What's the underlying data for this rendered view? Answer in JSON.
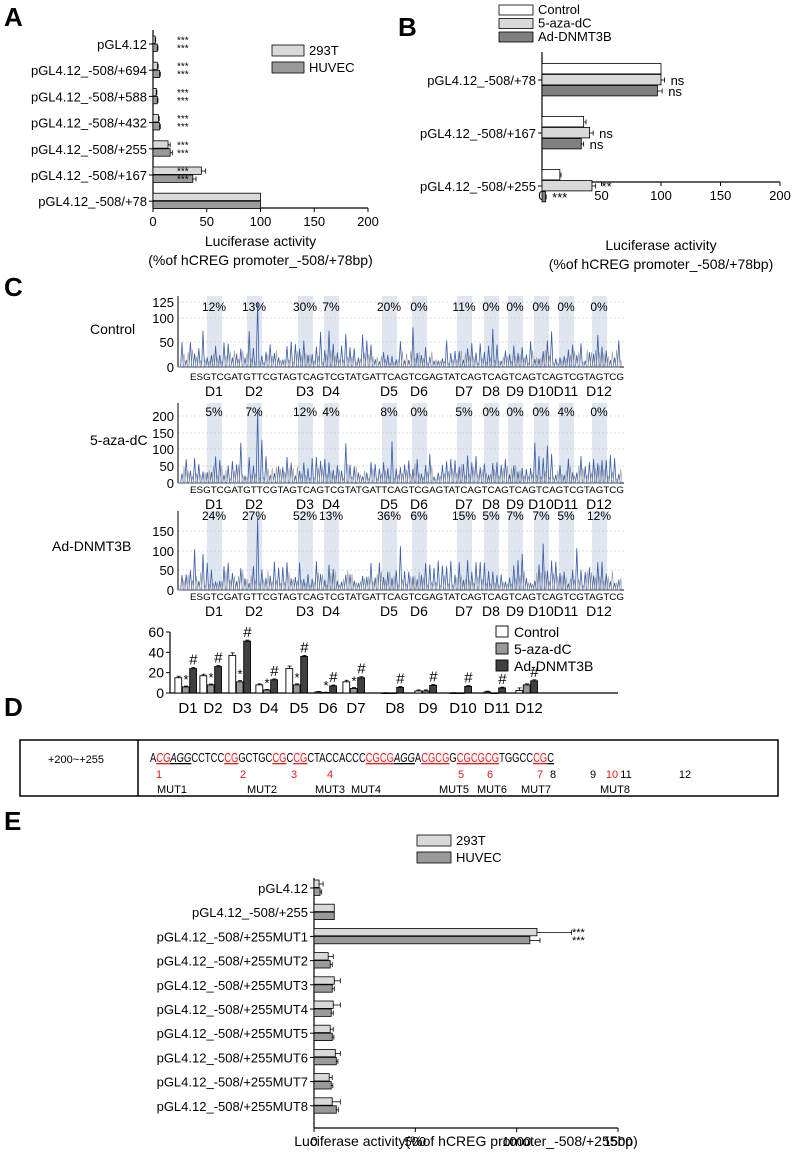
{
  "chart_data": [
    {
      "panel": "A",
      "type": "bar",
      "orientation": "horizontal",
      "categories": [
        "pGL4.12",
        "pGL4.12_-508/+694",
        "pGL4.12_-508/+588",
        "pGL4.12_-508/+432",
        "pGL4.12_-508/+255",
        "pGL4.12_-508/+167",
        "pGL4.12_-508/+78"
      ],
      "series": [
        {
          "name": "293T",
          "values": [
            2,
            4,
            3,
            5,
            14,
            45,
            100
          ],
          "errors": [
            0.5,
            0.8,
            0.6,
            0.8,
            2,
            4,
            0
          ],
          "color": "#d9d9d9"
        },
        {
          "name": "HUVEC",
          "values": [
            4,
            6,
            4,
            6,
            16,
            37,
            100
          ],
          "errors": [
            0.6,
            0.8,
            0.6,
            0.8,
            2,
            3,
            0
          ],
          "color": "#9a9a9a"
        }
      ],
      "significance": [
        [
          "***",
          "***"
        ],
        [
          "***",
          "***"
        ],
        [
          "***",
          "***"
        ],
        [
          "***",
          "***"
        ],
        [
          "***",
          "***"
        ],
        [
          "***",
          "***"
        ],
        [
          "",
          ""
        ]
      ],
      "xlabel": "Luciferase activity",
      "xlabel2": "(%of hCREG promoter_-508/+78bp)",
      "xlim": [
        0,
        200
      ],
      "xticks": [
        "0",
        "50",
        "100",
        "150",
        "200"
      ],
      "legend_placement": "top-right"
    },
    {
      "panel": "B",
      "type": "bar",
      "orientation": "horizontal",
      "categories": [
        "pGL4.12_-508/+78",
        "pGL4.12_-508/+167",
        "pGL4.12_-508/+255"
      ],
      "series": [
        {
          "name": "Control",
          "values": [
            100,
            35,
            15
          ],
          "errors": [
            0,
            2,
            1
          ],
          "color": "#ffffff"
        },
        {
          "name": "5-aza-dC",
          "values": [
            100,
            40,
            42
          ],
          "errors": [
            3,
            3,
            3
          ],
          "color": "#d9d9d9"
        },
        {
          "name": "Ad-DNMT3B",
          "values": [
            97,
            33,
            3
          ],
          "errors": [
            4,
            2,
            0.5
          ],
          "color": "#808080"
        }
      ],
      "significance": [
        [
          "",
          "ns",
          "ns"
        ],
        [
          "",
          "ns",
          "ns"
        ],
        [
          "",
          "**",
          "***"
        ]
      ],
      "xlabel": "Luciferase activity",
      "xlabel2": "(%of hCREG promoter_-508/+78bp)",
      "xlim": [
        0,
        200
      ],
      "xticks": [
        "0",
        "50",
        "100",
        "150",
        "200"
      ],
      "legend_placement": "top"
    },
    {
      "panel": "C-top",
      "type": "line",
      "sequence": "ESGTCGATGTTCGTAGTCAGTCGTATGATTCAGTCGAGTATCAGTCAGTCAGTCAGTCGTAGTCG",
      "sites": [
        "D1",
        "D2",
        "D3",
        "D4",
        "D5",
        "D6",
        "D7",
        "D8",
        "D9",
        "D10",
        "D11",
        "D12"
      ],
      "traces": [
        {
          "name": "Control",
          "yticks": [
            "0",
            "50",
            "100",
            "125"
          ],
          "ymax": 130,
          "percentages": [
            "12%",
            "13%",
            "30%",
            "7%",
            "20%",
            "0%",
            "11%",
            "0%",
            "0%",
            "0%",
            "0%",
            "0%"
          ]
        },
        {
          "name": "5-aza-dC",
          "yticks": [
            "0",
            "50",
            "100",
            "150",
            "200"
          ],
          "ymax": 220,
          "percentages": [
            "5%",
            "7%",
            "12%",
            "4%",
            "8%",
            "0%",
            "5%",
            "0%",
            "0%",
            "0%",
            "4%",
            "0%"
          ]
        },
        {
          "name": "Ad-DNMT3B",
          "yticks": [
            "0",
            "50",
            "100",
            "150"
          ],
          "ymax": 165,
          "percentages": [
            "24%",
            "27%",
            "52%",
            "13%",
            "36%",
            "6%",
            "15%",
            "5%",
            "7%",
            "7%",
            "5%",
            "12%"
          ]
        }
      ]
    },
    {
      "panel": "C-bottom",
      "type": "bar",
      "categories": [
        "D1",
        "D2",
        "D3",
        "D4",
        "D5",
        "D6",
        "D7",
        "D8",
        "D9",
        "D10",
        "D11",
        "D12"
      ],
      "series": [
        {
          "name": "Control",
          "values": [
            15,
            17,
            37,
            8,
            24,
            1,
            11,
            0,
            2,
            0,
            1,
            2.5
          ],
          "errors": [
            1.5,
            1.5,
            2.5,
            1,
            2.5,
            0.5,
            1.5,
            0.3,
            1,
            0.3,
            0.8,
            2.5
          ],
          "color": "#ffffff"
        },
        {
          "name": "5-aza-dC",
          "values": [
            6,
            8,
            11,
            3,
            8,
            0.5,
            4.5,
            0,
            2,
            0,
            0,
            8
          ],
          "errors": [
            0.8,
            0.8,
            1.2,
            0.5,
            1,
            0.3,
            0.8,
            0,
            1,
            0,
            0,
            1
          ],
          "color": "#999999"
        },
        {
          "name": "Ad-DNMT3B",
          "values": [
            24,
            26,
            51,
            13,
            36,
            7,
            15,
            5.5,
            7.5,
            6.5,
            5,
            12
          ],
          "errors": [
            1,
            1,
            1,
            0.8,
            1,
            0.8,
            1,
            0.8,
            0.8,
            0.8,
            0.8,
            1
          ],
          "color": "#404040"
        }
      ],
      "marks_star": [
        true,
        true,
        true,
        true,
        true,
        true,
        true,
        false,
        false,
        false,
        false,
        false
      ],
      "marks_hash": [
        true,
        true,
        true,
        true,
        true,
        true,
        true,
        true,
        true,
        true,
        true,
        true
      ],
      "star_label": "*",
      "hash_label": "#",
      "ylim": [
        0,
        60
      ],
      "yticks": [
        "0",
        "20",
        "40",
        "60"
      ],
      "legend_placement": "top-right"
    },
    {
      "panel": "E",
      "type": "bar",
      "orientation": "horizontal",
      "categories": [
        "pGL4.12",
        "pGL4.12_-508/+255",
        "pGL4.12_-508/+255MUT1",
        "pGL4.12_-508/+255MUT2",
        "pGL4.12_-508/+255MUT3",
        "pGL4.12_-508/+255MUT4",
        "pGL4.12_-508/+255MUT5",
        "pGL4.12_-508/+255MUT6",
        "pGL4.12_-508/+255MUT7",
        "pGL4.12_-508/+255MUT8"
      ],
      "series": [
        {
          "name": "293T",
          "values": [
            25,
            100,
            1100,
            70,
            100,
            95,
            80,
            105,
            75,
            90
          ],
          "errors": [
            20,
            0,
            170,
            25,
            30,
            35,
            15,
            25,
            15,
            40
          ],
          "color": "#d9d9d9"
        },
        {
          "name": "HUVEC",
          "values": [
            30,
            100,
            1065,
            80,
            90,
            85,
            90,
            110,
            85,
            110
          ],
          "errors": [
            8,
            0,
            50,
            10,
            10,
            10,
            8,
            8,
            8,
            10
          ],
          "color": "#9a9a9a"
        }
      ],
      "significance": [
        [
          "",
          ""
        ],
        [
          "",
          ""
        ],
        [
          "***",
          "***"
        ],
        [
          "",
          ""
        ],
        [
          "",
          ""
        ],
        [
          "",
          ""
        ],
        [
          "",
          ""
        ],
        [
          "",
          ""
        ],
        [
          "",
          ""
        ],
        [
          "",
          ""
        ]
      ],
      "xlabel": "Luciferase activity(%of hCREG promoter_-508/+255bp)",
      "xlim": [
        0,
        1500
      ],
      "xticks": [
        "0",
        "500",
        "1000",
        "1500"
      ],
      "legend_placement": "top-right"
    }
  ],
  "panel_labels": {
    "a": "A",
    "b": "B",
    "c": "C",
    "d": "D",
    "e": "E"
  },
  "panel_d": {
    "region_label": "+200~+255",
    "segments": [
      {
        "t": "A",
        "red": false,
        "italic": false
      },
      {
        "t": "CG",
        "red": true,
        "italic": true,
        "u": true
      },
      {
        "t": "AGG",
        "red": false,
        "italic": true,
        "u": true
      },
      {
        "t": "CCTCC",
        "red": false,
        "italic": false
      },
      {
        "t": "CG",
        "red": true,
        "italic": false,
        "u": true
      },
      {
        "t": "GCTGC",
        "red": false,
        "italic": false
      },
      {
        "t": "CG",
        "red": true,
        "italic": false,
        "u": true
      },
      {
        "t": "C",
        "red": false,
        "italic": false
      },
      {
        "t": "CG",
        "red": true,
        "italic": false,
        "u": true
      },
      {
        "t": "CTACCACCC",
        "red": false,
        "italic": false
      },
      {
        "t": "CGCG",
        "red": true,
        "italic": false,
        "u": true
      },
      {
        "t": "AGG",
        "red": false,
        "italic": true,
        "u": true
      },
      {
        "t": "A",
        "red": false,
        "italic": false
      },
      {
        "t": "CGCG",
        "red": true,
        "italic": false,
        "u": true
      },
      {
        "t": "G",
        "red": false,
        "italic": false
      },
      {
        "t": "CGCGCG",
        "red": true,
        "italic": false,
        "u": true
      },
      {
        "t": "TGGCC",
        "red": false,
        "italic": false
      },
      {
        "t": "CG",
        "red": true,
        "italic": false,
        "u": true
      },
      {
        "t": "C",
        "red": false,
        "italic": false,
        "u": true
      }
    ],
    "site_numbers": [
      {
        "n": "1",
        "red": true
      },
      {
        "n": "2",
        "red": true
      },
      {
        "n": "3",
        "red": true
      },
      {
        "n": "4",
        "red": true
      },
      {
        "n": "5",
        "red": true
      },
      {
        "n": "6",
        "red": true
      },
      {
        "n": "7",
        "red": true
      },
      {
        "n": "8",
        "red": false
      },
      {
        "n": "9",
        "red": false
      },
      {
        "n": "10",
        "red": true
      },
      {
        "n": "11",
        "red": false
      },
      {
        "n": "12",
        "red": false
      }
    ],
    "mutations": [
      "MUT1",
      "MUT2",
      "MUT3",
      "MUT4",
      "MUT5",
      "MUT6",
      "MUT7",
      "MUT8"
    ]
  }
}
